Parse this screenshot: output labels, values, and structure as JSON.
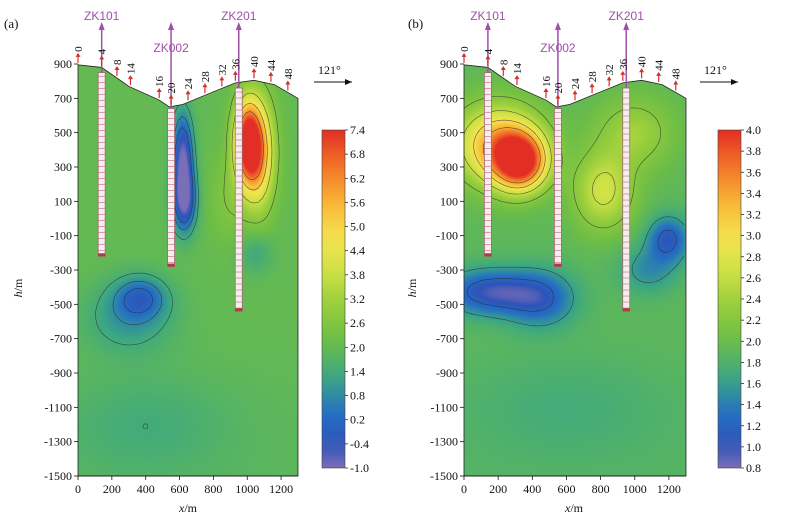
{
  "chart_data": [
    {
      "type": "heatmap",
      "panel_label": "(a)",
      "xlabel_var": "x",
      "xlabel_unit": "/m",
      "ylabel_var": "h",
      "ylabel_unit": "/m",
      "xlim": [
        0,
        1300
      ],
      "ylim": [
        -1500,
        900
      ],
      "x_ticks": [
        "0",
        "400",
        "800",
        "1200",
        "200",
        "600",
        "1000"
      ],
      "x_tick_values": [
        0,
        400,
        800,
        1200,
        200,
        600,
        1000
      ],
      "y_ticks": [
        "900",
        "700",
        "500",
        "300",
        "100",
        "-100",
        "-300",
        "-500",
        "-700",
        "-900",
        "-1100",
        "-1300",
        "-1500"
      ],
      "y_tick_values": [
        900,
        700,
        500,
        300,
        100,
        -100,
        -300,
        -500,
        -700,
        -900,
        -1100,
        -1300,
        -1500
      ],
      "stations": [
        "0",
        "4",
        "8",
        "14",
        "16",
        "20",
        "24",
        "28",
        "32",
        "36",
        "40",
        "44",
        "48"
      ],
      "station_x": [
        0,
        140,
        230,
        310,
        480,
        550,
        650,
        750,
        850,
        930,
        1040,
        1140,
        1240
      ],
      "direction_label": "121°",
      "wells": [
        {
          "name": "ZK101",
          "x": 140,
          "top": 850,
          "bottom": -220
        },
        {
          "name": "ZK002",
          "x": 550,
          "top": 640,
          "bottom": -280
        },
        {
          "name": "ZK201",
          "x": 950,
          "top": 760,
          "bottom": -540
        }
      ],
      "colorbar_ticks": [
        "7.4",
        "6.8",
        "6.2",
        "5.6",
        "5.0",
        "4.4",
        "3.8",
        "3.2",
        "2.6",
        "2.0",
        "1.4",
        "0.8",
        "0.2",
        "-0.4",
        "-1.0"
      ],
      "colorbar_range": [
        -1.0,
        7.4
      ],
      "background_value": 2.0,
      "anomalies": [
        {
          "x": 1000,
          "y": 450,
          "value": 7.2,
          "sx": 75,
          "sy": 230
        },
        {
          "x": 1070,
          "y": 380,
          "value": 5.8,
          "sx": 90,
          "sy": 300
        },
        {
          "x": 620,
          "y": 350,
          "value": -0.9,
          "sx": 60,
          "sy": 260
        },
        {
          "x": 630,
          "y": 100,
          "value": -0.4,
          "sx": 70,
          "sy": 180
        },
        {
          "x": 370,
          "y": -460,
          "value": 0.4,
          "sx": 150,
          "sy": 120
        },
        {
          "x": 300,
          "y": -580,
          "value": 1.0,
          "sx": 260,
          "sy": 200
        },
        {
          "x": 1050,
          "y": -200,
          "value": 1.3,
          "sx": 100,
          "sy": 120
        },
        {
          "x": 400,
          "y": -1200,
          "value": 1.5,
          "sx": 500,
          "sy": 300
        },
        {
          "x": 900,
          "y": 120,
          "value": 2.6,
          "sx": 120,
          "sy": 250
        }
      ]
    },
    {
      "type": "heatmap",
      "panel_label": "(b)",
      "xlabel_var": "x",
      "xlabel_unit": "/m",
      "ylabel_var": "h",
      "ylabel_unit": "/m",
      "xlim": [
        0,
        1300
      ],
      "ylim": [
        -1500,
        900
      ],
      "x_ticks": [
        "0",
        "400",
        "800",
        "1200",
        "200",
        "600",
        "1000"
      ],
      "x_tick_values": [
        0,
        400,
        800,
        1200,
        200,
        600,
        1000
      ],
      "y_ticks": [
        "900",
        "700",
        "500",
        "300",
        "100",
        "-100",
        "-300",
        "-500",
        "-700",
        "-900",
        "-1100",
        "-1300",
        "-1500"
      ],
      "y_tick_values": [
        900,
        700,
        500,
        300,
        100,
        -100,
        -300,
        -500,
        -700,
        -900,
        -1100,
        -1300,
        -1500
      ],
      "stations": [
        "0",
        "4",
        "8",
        "14",
        "16",
        "20",
        "24",
        "28",
        "32",
        "36",
        "40",
        "44",
        "48"
      ],
      "station_x": [
        0,
        140,
        230,
        310,
        480,
        550,
        650,
        750,
        850,
        930,
        1040,
        1140,
        1240
      ],
      "direction_label": "121°",
      "wells": [
        {
          "name": "ZK101",
          "x": 140,
          "top": 850,
          "bottom": -220
        },
        {
          "name": "ZK002",
          "x": 550,
          "top": 640,
          "bottom": -280
        },
        {
          "name": "ZK201",
          "x": 950,
          "top": 760,
          "bottom": -540
        }
      ],
      "colorbar_ticks": [
        "4.0",
        "3.8",
        "3.6",
        "3.4",
        "3.2",
        "3.0",
        "2.8",
        "2.6",
        "2.4",
        "2.2",
        "2.0",
        "1.8",
        "1.6",
        "1.4",
        "1.2",
        "1.0",
        "0.8"
      ],
      "colorbar_range": [
        0.8,
        4.0
      ],
      "background_value": 1.9,
      "anomalies": [
        {
          "x": 330,
          "y": 330,
          "value": 3.9,
          "sx": 150,
          "sy": 160
        },
        {
          "x": 200,
          "y": 430,
          "value": 3.4,
          "sx": 240,
          "sy": 220
        },
        {
          "x": 150,
          "y": -430,
          "value": 1.0,
          "sx": 260,
          "sy": 130
        },
        {
          "x": 450,
          "y": -470,
          "value": 1.2,
          "sx": 200,
          "sy": 160
        },
        {
          "x": 1200,
          "y": -120,
          "value": 1.1,
          "sx": 120,
          "sy": 130
        },
        {
          "x": 1080,
          "y": -300,
          "value": 1.5,
          "sx": 170,
          "sy": 140
        },
        {
          "x": 820,
          "y": 160,
          "value": 2.7,
          "sx": 170,
          "sy": 220
        },
        {
          "x": 1000,
          "y": 500,
          "value": 2.4,
          "sx": 220,
          "sy": 200
        },
        {
          "x": 600,
          "y": -1100,
          "value": 1.75,
          "sx": 600,
          "sy": 300
        }
      ]
    }
  ]
}
